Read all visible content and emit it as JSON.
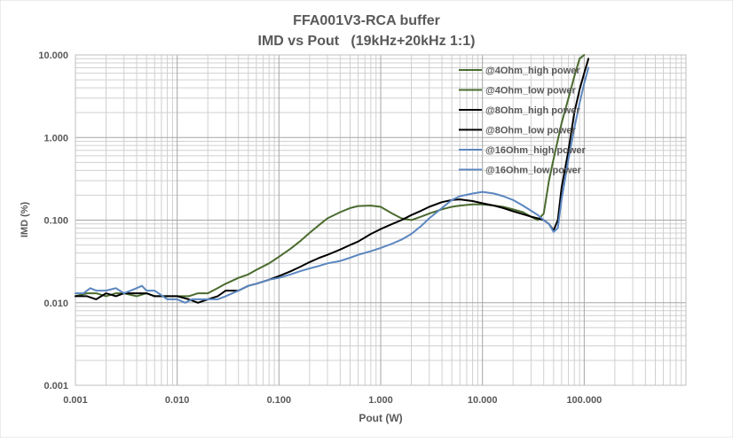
{
  "chart_data": {
    "type": "line",
    "title": "FFA001V3-RCA buffer",
    "subtitle": "IMD vs Pout   (19kHz+20kHz 1:1)",
    "xlabel": "Pout (W)",
    "ylabel": "IMD (%)",
    "x_scale": "log",
    "y_scale": "log",
    "xlim": [
      0.001,
      1000
    ],
    "ylim": [
      0.001,
      10
    ],
    "x_ticks": [
      {
        "value": 0.001,
        "label": "0.001"
      },
      {
        "value": 0.01,
        "label": "0.010"
      },
      {
        "value": 0.1,
        "label": "0.100"
      },
      {
        "value": 1,
        "label": "1.000"
      },
      {
        "value": 10,
        "label": "10.000"
      },
      {
        "value": 100,
        "label": "100.000"
      }
    ],
    "y_ticks": [
      {
        "value": 10,
        "label": "10.000"
      },
      {
        "value": 1,
        "label": "1.000"
      },
      {
        "value": 0.1,
        "label": "0.100"
      },
      {
        "value": 0.01,
        "label": "0.010"
      },
      {
        "value": 0.001,
        "label": "0.001"
      }
    ],
    "grid": "major and minor",
    "legend_position": "top-right",
    "series": [
      {
        "name": "@4Ohm_high power",
        "color": "#4a6b2e",
        "width": 2,
        "x": [
          0.001,
          0.0013,
          0.0016,
          0.002,
          0.0025,
          0.003,
          0.004,
          0.005,
          0.006,
          0.008,
          0.01,
          0.013,
          0.016,
          0.02,
          0.025,
          0.03,
          0.04,
          0.05,
          0.06,
          0.08,
          0.1,
          0.13,
          0.16,
          0.2,
          0.25,
          0.3,
          0.4,
          0.5,
          0.6,
          0.8,
          1.0,
          1.3,
          1.6,
          2.0,
          2.5,
          3.0,
          4.0,
          5.0,
          6.0,
          8.0,
          10,
          13,
          16,
          20,
          25,
          30,
          35,
          40,
          45,
          50,
          60,
          70,
          80,
          90,
          100
        ],
        "y": [
          0.012,
          0.013,
          0.013,
          0.012,
          0.013,
          0.013,
          0.012,
          0.013,
          0.012,
          0.012,
          0.012,
          0.012,
          0.013,
          0.013,
          0.015,
          0.017,
          0.02,
          0.022,
          0.025,
          0.03,
          0.036,
          0.045,
          0.055,
          0.07,
          0.088,
          0.105,
          0.125,
          0.14,
          0.148,
          0.15,
          0.145,
          0.12,
          0.105,
          0.1,
          0.11,
          0.12,
          0.135,
          0.145,
          0.15,
          0.155,
          0.155,
          0.15,
          0.145,
          0.135,
          0.125,
          0.11,
          0.1,
          0.12,
          0.3,
          0.55,
          1.5,
          3.0,
          5.5,
          9.0,
          12.0
        ]
      },
      {
        "name": "@4Ohm_low power",
        "color": "#4a6b2e",
        "width": 2,
        "x": [],
        "y": []
      },
      {
        "name": "@8Ohm_high power",
        "color": "#000000",
        "width": 2,
        "x": [
          0.001,
          0.0013,
          0.0016,
          0.002,
          0.0025,
          0.003,
          0.004,
          0.005,
          0.006,
          0.008,
          0.01,
          0.013,
          0.016,
          0.02,
          0.025,
          0.03,
          0.04,
          0.05,
          0.06,
          0.08,
          0.1,
          0.13,
          0.16,
          0.2,
          0.25,
          0.3,
          0.4,
          0.5,
          0.6,
          0.8,
          1.0,
          1.3,
          1.6,
          2.0,
          2.5,
          3.0,
          4.0,
          5.0,
          6.0,
          8.0,
          10,
          13,
          16,
          20,
          25,
          30,
          35,
          40,
          45,
          50,
          55,
          60,
          70,
          80,
          90,
          100,
          110
        ],
        "y": [
          0.012,
          0.012,
          0.011,
          0.013,
          0.012,
          0.013,
          0.013,
          0.013,
          0.012,
          0.012,
          0.012,
          0.011,
          0.01,
          0.011,
          0.012,
          0.014,
          0.014,
          0.016,
          0.017,
          0.019,
          0.021,
          0.024,
          0.027,
          0.031,
          0.035,
          0.038,
          0.044,
          0.05,
          0.055,
          0.068,
          0.078,
          0.09,
          0.1,
          0.115,
          0.13,
          0.145,
          0.165,
          0.175,
          0.178,
          0.17,
          0.16,
          0.15,
          0.14,
          0.128,
          0.118,
          0.11,
          0.105,
          0.1,
          0.09,
          0.075,
          0.1,
          0.25,
          0.7,
          2.0,
          3.8,
          6.0,
          9.0
        ]
      },
      {
        "name": "@8Ohm_low power",
        "color": "#000000",
        "width": 2,
        "x": [],
        "y": []
      },
      {
        "name": "@16Ohm_high power",
        "color": "#5b86c0",
        "width": 2,
        "x": [
          0.001,
          0.0012,
          0.0014,
          0.0016,
          0.002,
          0.0025,
          0.003,
          0.0035,
          0.004,
          0.0045,
          0.005,
          0.006,
          0.008,
          0.01,
          0.012,
          0.014,
          0.016,
          0.02,
          0.025,
          0.03,
          0.04,
          0.05,
          0.06,
          0.08,
          0.1,
          0.13,
          0.16,
          0.2,
          0.25,
          0.3,
          0.4,
          0.5,
          0.6,
          0.8,
          1.0,
          1.3,
          1.6,
          2.0,
          2.5,
          3.0,
          4.0,
          5.0,
          6.0,
          8.0,
          10,
          13,
          16,
          20,
          25,
          30,
          35,
          40,
          45,
          50,
          55,
          60,
          70,
          80,
          90,
          100,
          110
        ],
        "y": [
          0.013,
          0.013,
          0.015,
          0.014,
          0.014,
          0.015,
          0.013,
          0.014,
          0.015,
          0.016,
          0.014,
          0.014,
          0.011,
          0.011,
          0.01,
          0.011,
          0.011,
          0.011,
          0.011,
          0.012,
          0.014,
          0.016,
          0.017,
          0.019,
          0.02,
          0.022,
          0.024,
          0.026,
          0.028,
          0.03,
          0.032,
          0.035,
          0.038,
          0.042,
          0.046,
          0.052,
          0.058,
          0.068,
          0.085,
          0.105,
          0.14,
          0.175,
          0.195,
          0.21,
          0.22,
          0.21,
          0.195,
          0.175,
          0.15,
          0.13,
          0.115,
          0.1,
          0.09,
          0.072,
          0.08,
          0.18,
          0.55,
          1.3,
          2.6,
          4.5,
          7.0
        ]
      },
      {
        "name": "@16Ohm_low power",
        "color": "#5b86c0",
        "width": 2,
        "x": [],
        "y": []
      }
    ]
  }
}
